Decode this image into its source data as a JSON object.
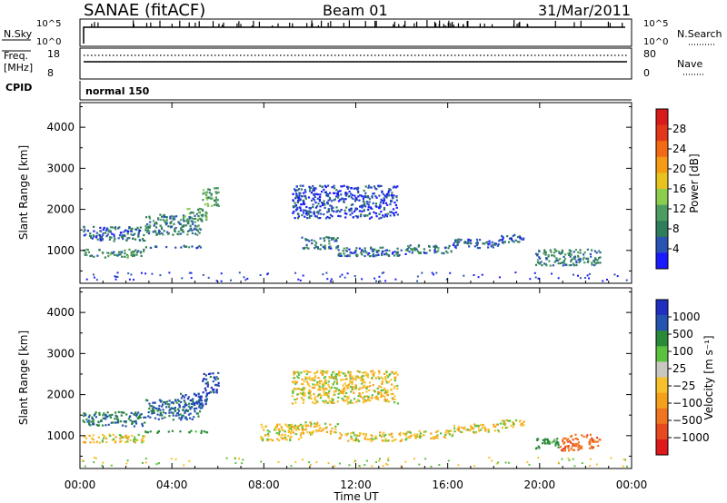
{
  "header": {
    "station": "SANAE (fitACF)",
    "beam": "Beam 01",
    "date": "31/Mar/2011"
  },
  "aux_panels": {
    "nsky": {
      "label": "N.Sky",
      "ticks": [
        "10^5",
        "10^0"
      ],
      "right_label": "N.Search",
      "right_ticks": [
        "10^5",
        "10^0"
      ]
    },
    "freq": {
      "label_lines": [
        "Freq.",
        "[MHz]"
      ],
      "ticks": [
        "18",
        "8"
      ],
      "right_label": "Nave",
      "right_ticks": [
        "80",
        "0"
      ]
    },
    "cpid": {
      "label": "CPID",
      "value": "normal 150"
    }
  },
  "colors": {
    "power": [
      "#1a1aff",
      "#2a54b4",
      "#2f7d5a",
      "#4d9c62",
      "#8ccd50",
      "#e8c21e",
      "#f59b14",
      "#f36a14",
      "#e3361a",
      "#d81a1a"
    ],
    "velocity": [
      "#1f2fbf",
      "#2554b0",
      "#2a8a3a",
      "#5cc040",
      "#c8c8c0",
      "#f7c12b",
      "#f5a01a",
      "#f07520",
      "#e64a1e",
      "#e01a1a"
    ]
  },
  "chart_data": [
    {
      "type": "heatmap",
      "name": "power",
      "ylabel": "Slant Range [km]",
      "ylim": [
        200,
        4600
      ],
      "yticks": [
        1000,
        2000,
        3000,
        4000
      ],
      "xlim": [
        0,
        24
      ],
      "colorbar": {
        "label": "Power [dB]",
        "ticks": [
          "4",
          "8",
          "12",
          "16",
          "20",
          "24",
          "28"
        ],
        "range": [
          0,
          32
        ]
      },
      "regions": [
        {
          "t0": 0.1,
          "t1": 2.8,
          "r0": 850,
          "r1": 1050,
          "v": 9
        },
        {
          "t0": 0.1,
          "t1": 2.8,
          "r0": 1250,
          "r1": 1600,
          "v": 6
        },
        {
          "t0": 2.8,
          "t1": 5.3,
          "r0": 1400,
          "r1": 1900,
          "v": 8
        },
        {
          "t0": 4.3,
          "t1": 5.5,
          "r0": 1750,
          "r1": 2050,
          "v": 11
        },
        {
          "t0": 5.3,
          "t1": 6.0,
          "r0": 2050,
          "r1": 2550,
          "v": 11
        },
        {
          "t0": 2.8,
          "t1": 5.5,
          "r0": 1080,
          "r1": 1140,
          "v": 7
        },
        {
          "t0": 9.6,
          "t1": 11.2,
          "r0": 1050,
          "r1": 1350,
          "v": 7
        },
        {
          "t0": 11.2,
          "t1": 14.2,
          "r0": 880,
          "r1": 1100,
          "v": 6
        },
        {
          "t0": 14.2,
          "t1": 16.2,
          "r0": 950,
          "r1": 1150,
          "v": 7
        },
        {
          "t0": 16.2,
          "t1": 18.2,
          "r0": 1080,
          "r1": 1300,
          "v": 6
        },
        {
          "t0": 18.2,
          "t1": 19.3,
          "r0": 1200,
          "r1": 1400,
          "v": 6
        },
        {
          "t0": 19.8,
          "t1": 22.6,
          "r0": 650,
          "r1": 1050,
          "v": 8
        },
        {
          "t0": 9.2,
          "t1": 13.8,
          "r0": 1800,
          "r1": 2600,
          "v": 4
        }
      ]
    },
    {
      "type": "heatmap",
      "name": "velocity",
      "ylabel": "Slant Range [km]",
      "ylim": [
        200,
        4600
      ],
      "yticks": [
        1000,
        2000,
        3000,
        4000
      ],
      "xlim": [
        0,
        24
      ],
      "colorbar": {
        "label": "Velocity [m s⁻¹]",
        "ticks": [
          "1000",
          "500",
          "100",
          "25",
          "−25",
          "−100",
          "−500",
          "−1000"
        ],
        "range": [
          -1000,
          1000
        ]
      },
      "regions": [
        {
          "t0": 0.1,
          "t1": 2.8,
          "r0": 850,
          "r1": 1050,
          "v": 0
        },
        {
          "t0": 0.1,
          "t1": 2.8,
          "r0": 1250,
          "r1": 1600,
          "v": 300
        },
        {
          "t0": 2.8,
          "t1": 5.3,
          "r0": 1400,
          "r1": 1900,
          "v": 400
        },
        {
          "t0": 4.3,
          "t1": 5.5,
          "r0": 1750,
          "r1": 2050,
          "v": 600
        },
        {
          "t0": 5.3,
          "t1": 6.0,
          "r0": 2050,
          "r1": 2550,
          "v": 700
        },
        {
          "t0": 2.8,
          "t1": 5.5,
          "r0": 1080,
          "r1": 1140,
          "v": 150
        },
        {
          "t0": 7.8,
          "t1": 9.6,
          "r0": 900,
          "r1": 1300,
          "v": 0
        },
        {
          "t0": 9.6,
          "t1": 11.2,
          "r0": 1050,
          "r1": 1350,
          "v": 0
        },
        {
          "t0": 11.2,
          "t1": 14.2,
          "r0": 880,
          "r1": 1100,
          "v": 0
        },
        {
          "t0": 14.2,
          "t1": 16.2,
          "r0": 950,
          "r1": 1150,
          "v": 0
        },
        {
          "t0": 16.2,
          "t1": 18.2,
          "r0": 1080,
          "r1": 1300,
          "v": 0
        },
        {
          "t0": 18.2,
          "t1": 19.3,
          "r0": 1200,
          "r1": 1400,
          "v": 0
        },
        {
          "t0": 19.8,
          "t1": 20.8,
          "r0": 700,
          "r1": 950,
          "v": 120
        },
        {
          "t0": 20.8,
          "t1": 22.6,
          "r0": 650,
          "r1": 1050,
          "v": -250
        },
        {
          "t0": 9.2,
          "t1": 13.8,
          "r0": 1800,
          "r1": 2600,
          "v": 0
        }
      ]
    }
  ],
  "time_axis": {
    "label": "Time UT",
    "ticks": [
      "00:00",
      "04:00",
      "08:00",
      "12:00",
      "16:00",
      "20:00",
      "00:00"
    ]
  }
}
